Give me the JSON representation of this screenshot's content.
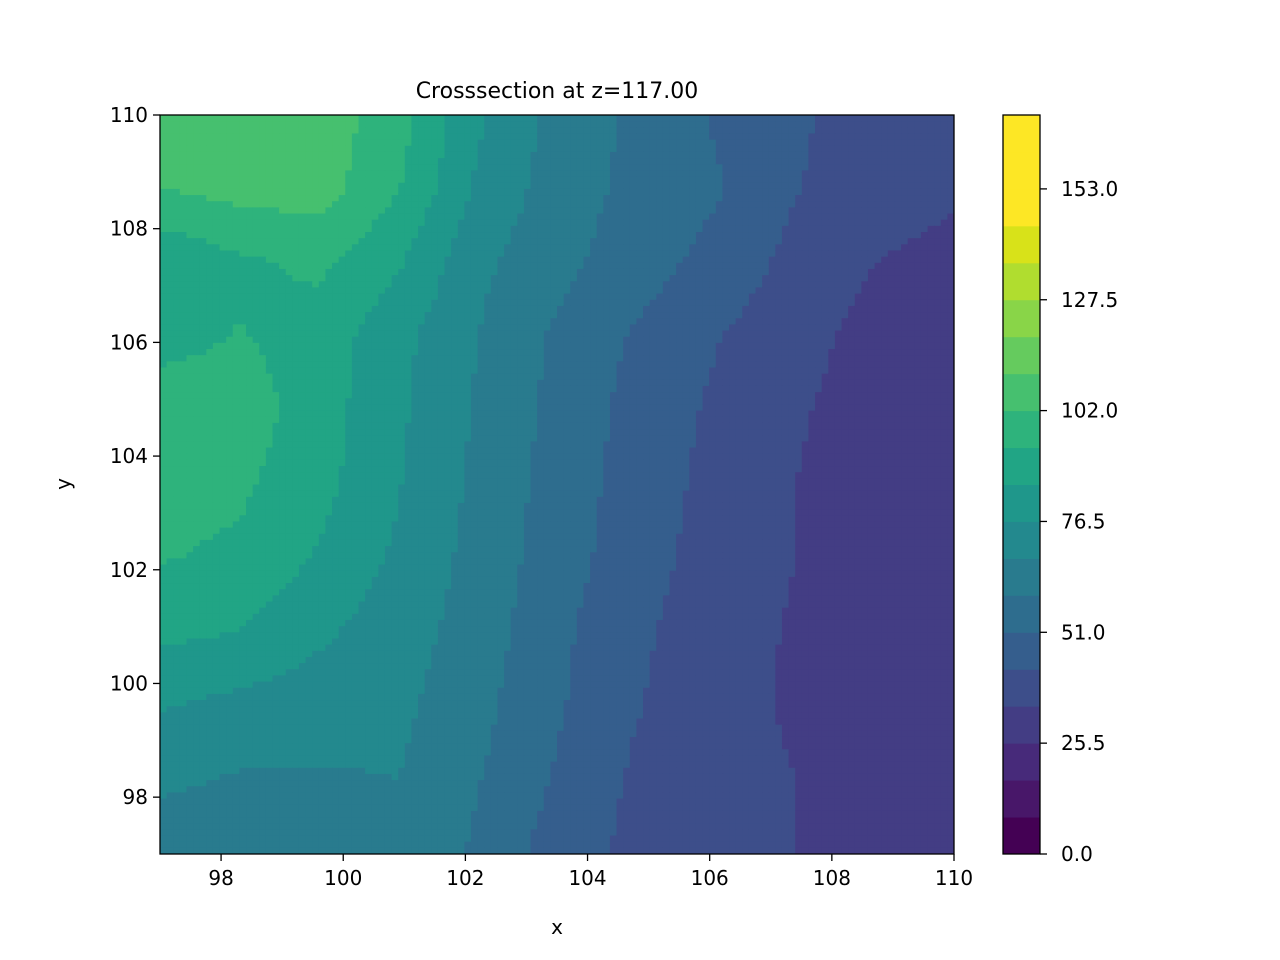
{
  "chart_data": {
    "type": "heatmap",
    "subtype": "filled-contour",
    "title": "Crosssection at z=117.00",
    "xlabel": "x",
    "ylabel": "y",
    "xlim": [
      97,
      110
    ],
    "ylim": [
      97,
      110
    ],
    "x_ticks": [
      "98",
      "100",
      "102",
      "104",
      "106",
      "108",
      "110"
    ],
    "y_ticks": [
      "98",
      "100",
      "102",
      "104",
      "106",
      "108",
      "110"
    ],
    "colormap": "viridis",
    "colorbar": {
      "range": [
        0,
        170
      ],
      "levels": [
        0,
        8.5,
        17,
        25.5,
        34,
        42.5,
        51,
        59.5,
        68,
        76.5,
        85,
        93.5,
        102,
        110.5,
        119,
        127.5,
        136,
        144.5,
        153,
        161.5,
        170
      ],
      "tick_labels": [
        "0.0",
        "25.5",
        "51.0",
        "76.5",
        "102.0",
        "127.5",
        "153.0"
      ],
      "colors": [
        "#440154",
        "#481769",
        "#472a7a",
        "#433d84",
        "#3d4e8a",
        "#355e8d",
        "#2e6d8e",
        "#297b8e",
        "#23898e",
        "#1f978b",
        "#21a585",
        "#2eb37c",
        "#46c06f",
        "#65cb5e",
        "#89d548",
        "#b0dd2f",
        "#d8e219",
        "#fde725",
        "#fde725",
        "#fde725"
      ]
    },
    "grid": false,
    "data": {
      "x": [
        97,
        98.3,
        99.6,
        100.9,
        102.2,
        103.5,
        104.8,
        106.1,
        107.4,
        108.7,
        110
      ],
      "y": [
        97,
        98.3,
        99.6,
        100.9,
        102.2,
        103.5,
        104.8,
        106.1,
        107.4,
        108.7,
        110
      ],
      "z": [
        [
          62,
          60,
          65,
          67,
          58,
          47,
          40,
          36,
          34,
          31,
          29
        ],
        [
          70,
          67,
          67,
          68,
          60,
          50,
          41,
          37,
          34,
          30,
          27
        ],
        [
          77,
          74,
          72,
          70,
          62,
          52,
          43,
          37,
          33,
          29,
          26
        ],
        [
          87,
          85,
          78,
          72,
          64,
          53,
          44,
          38,
          33,
          29,
          26
        ],
        [
          94,
          92,
          84,
          75,
          65,
          55,
          46,
          39,
          34,
          29,
          26
        ],
        [
          96,
          95,
          88,
          77,
          66,
          56,
          47,
          40,
          34,
          29,
          26
        ],
        [
          99,
          98,
          89,
          78,
          67,
          57,
          48,
          41,
          35,
          30,
          27
        ],
        [
          90,
          94,
          90,
          79,
          68,
          58,
          50,
          43,
          37,
          31,
          29
        ],
        [
          86,
          92,
          95,
          86,
          70,
          62,
          55,
          48,
          40,
          34,
          32
        ],
        [
          102,
          105,
          106,
          94,
          75,
          64,
          57,
          52,
          43,
          37,
          35
        ],
        [
          104,
          106,
          107,
          97,
          78,
          65,
          58,
          50,
          44,
          38,
          36
        ]
      ]
    }
  }
}
